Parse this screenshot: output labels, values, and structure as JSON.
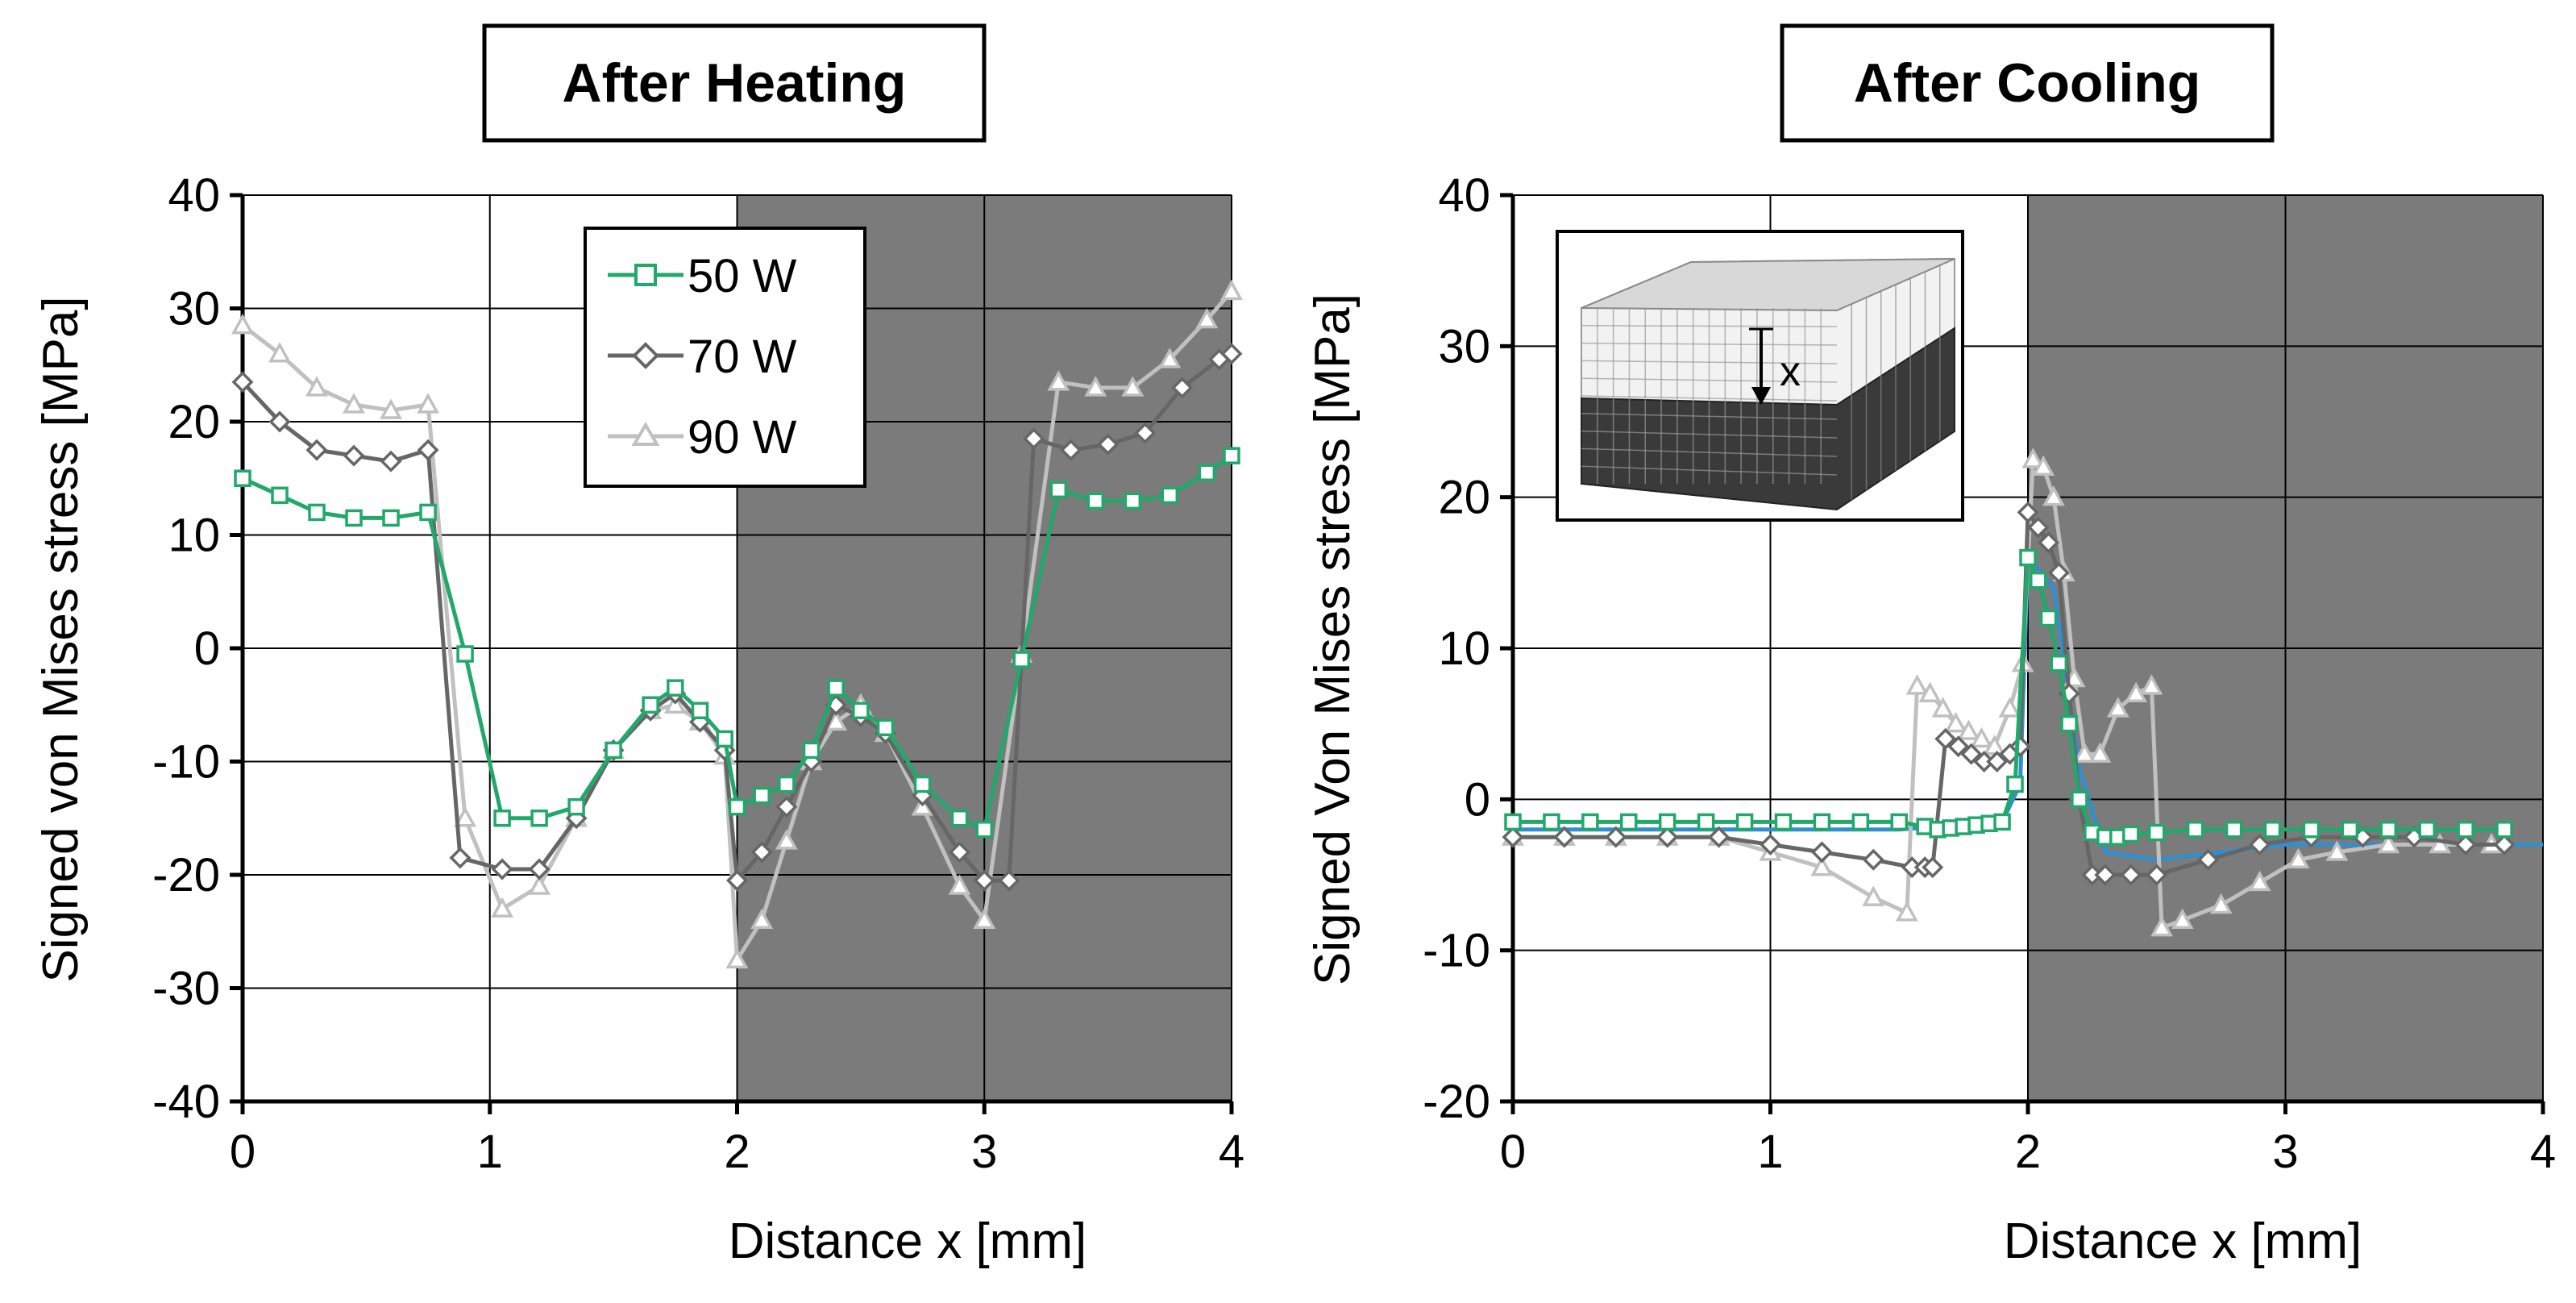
{
  "colors": {
    "50 W": "#22a86a",
    "70 W": "#666666",
    "90 W": "#c0c0c0",
    "cooling_extra": "#2f8fd0",
    "shade": "#7b7b7b"
  },
  "chart_data": [
    {
      "type": "line",
      "title": "After Heating",
      "xlabel": "Distance x   [mm]",
      "ylabel": "Signed von Mises stress   [MPa]",
      "xlim": [
        0,
        4
      ],
      "ylim": [
        -40,
        40
      ],
      "xticks": [
        0,
        1,
        2,
        3,
        4
      ],
      "yticks": [
        -40,
        -30,
        -20,
        -10,
        0,
        10,
        20,
        30,
        40
      ],
      "shaded_x_range": [
        2,
        4
      ],
      "grid": true,
      "legend": {
        "position": "top-center",
        "entries": [
          "50 W",
          "70 W",
          "90 W"
        ]
      },
      "series": [
        {
          "name": "50 W",
          "marker": "square",
          "x": [
            0,
            0.15,
            0.3,
            0.45,
            0.6,
            0.75,
            0.9,
            1.05,
            1.2,
            1.35,
            1.5,
            1.65,
            1.75,
            1.85,
            1.95,
            2.0,
            2.1,
            2.2,
            2.3,
            2.4,
            2.5,
            2.6,
            2.75,
            2.9,
            3.0,
            3.15,
            3.3,
            3.45,
            3.6,
            3.75,
            3.9,
            4.0
          ],
          "y": [
            15,
            13.5,
            12,
            11.5,
            11.5,
            12,
            -0.5,
            -15,
            -15,
            -14,
            -9,
            -5,
            -3.5,
            -5.5,
            -8,
            -14,
            -13,
            -12,
            -9,
            -3.5,
            -5.5,
            -7,
            -12,
            -15,
            -16,
            -1,
            14,
            13,
            13,
            13.5,
            15.5,
            17
          ]
        },
        {
          "name": "70 W",
          "marker": "diamond",
          "x": [
            0,
            0.15,
            0.3,
            0.45,
            0.6,
            0.75,
            0.88,
            1.05,
            1.2,
            1.35,
            1.5,
            1.65,
            1.75,
            1.85,
            1.95,
            2.0,
            2.1,
            2.2,
            2.3,
            2.4,
            2.5,
            2.6,
            2.75,
            2.9,
            3.0,
            3.1,
            3.2,
            3.35,
            3.5,
            3.65,
            3.8,
            3.95,
            4.0
          ],
          "y": [
            23.5,
            20,
            17.5,
            17,
            16.5,
            17.5,
            -18.5,
            -19.5,
            -19.5,
            -15,
            -9,
            -5.5,
            -4,
            -6.5,
            -9,
            -20.5,
            -18,
            -14,
            -10,
            -5,
            -6,
            -7.5,
            -13,
            -18,
            -20.5,
            -20.5,
            18.5,
            17.5,
            18,
            19,
            23,
            25.5,
            26
          ]
        },
        {
          "name": "90 W",
          "marker": "triangle",
          "x": [
            0,
            0.15,
            0.3,
            0.45,
            0.6,
            0.75,
            0.9,
            1.05,
            1.2,
            1.35,
            1.5,
            1.65,
            1.75,
            1.85,
            1.95,
            2.0,
            2.1,
            2.2,
            2.3,
            2.4,
            2.5,
            2.6,
            2.75,
            2.9,
            3.0,
            3.15,
            3.3,
            3.45,
            3.6,
            3.75,
            3.9,
            4.0
          ],
          "y": [
            28.5,
            26,
            23,
            21.5,
            21,
            21.5,
            -15,
            -23,
            -21,
            -15,
            -9,
            -5.5,
            -5,
            -6.5,
            -9.5,
            -27.5,
            -24,
            -17,
            -10,
            -6.5,
            -5,
            -7.5,
            -14,
            -21,
            -24,
            -0.5,
            23.5,
            23,
            23,
            25.5,
            29,
            31.5
          ]
        }
      ]
    },
    {
      "type": "line",
      "title": "After Cooling",
      "xlabel": "Distance x   [mm]",
      "ylabel": "Signed Von Mises stress   [MPa]",
      "xlim": [
        0,
        4
      ],
      "ylim": [
        -20,
        40
      ],
      "xticks": [
        0,
        1,
        2,
        3,
        4
      ],
      "yticks": [
        -20,
        -10,
        0,
        10,
        20,
        30,
        40
      ],
      "shaded_x_range": [
        2,
        4
      ],
      "grid": true,
      "inset": {
        "label": "x",
        "description": "mesh"
      },
      "series": [
        {
          "name": "50 W",
          "marker": "square",
          "x": [
            0,
            0.15,
            0.3,
            0.45,
            0.6,
            0.75,
            0.9,
            1.05,
            1.2,
            1.35,
            1.5,
            1.6,
            1.65,
            1.7,
            1.75,
            1.8,
            1.85,
            1.9,
            1.95,
            2.0,
            2.04,
            2.08,
            2.12,
            2.16,
            2.2,
            2.25,
            2.3,
            2.35,
            2.4,
            2.5,
            2.65,
            2.8,
            2.95,
            3.1,
            3.25,
            3.4,
            3.55,
            3.7,
            3.85
          ],
          "y": [
            -1.5,
            -1.5,
            -1.5,
            -1.5,
            -1.5,
            -1.5,
            -1.5,
            -1.5,
            -1.5,
            -1.5,
            -1.5,
            -1.8,
            -2.0,
            -1.9,
            -1.8,
            -1.7,
            -1.6,
            -1.5,
            1,
            16,
            14.5,
            12,
            9,
            5,
            0,
            -2.2,
            -2.5,
            -2.5,
            -2.3,
            -2.2,
            -2,
            -2,
            -2,
            -2,
            -2,
            -2,
            -2,
            -2,
            -2
          ]
        },
        {
          "name": "70 W",
          "marker": "diamond",
          "x": [
            0,
            0.2,
            0.4,
            0.6,
            0.8,
            1.0,
            1.2,
            1.4,
            1.55,
            1.6,
            1.63,
            1.68,
            1.73,
            1.78,
            1.83,
            1.88,
            1.93,
            1.97,
            2.0,
            2.04,
            2.08,
            2.12,
            2.16,
            2.2,
            2.25,
            2.3,
            2.4,
            2.5,
            2.7,
            2.9,
            3.1,
            3.3,
            3.5,
            3.7,
            3.85
          ],
          "y": [
            -2.5,
            -2.5,
            -2.5,
            -2.5,
            -2.5,
            -3,
            -3.5,
            -4,
            -4.5,
            -4.5,
            -4.5,
            4,
            3.5,
            3,
            2.5,
            2.5,
            3,
            3.5,
            19,
            18,
            17,
            15,
            7,
            0,
            -5,
            -5,
            -5,
            -5,
            -4,
            -3,
            -2.5,
            -2.5,
            -2.5,
            -3,
            -3
          ]
        },
        {
          "name": "90 W",
          "marker": "triangle",
          "x": [
            0,
            0.2,
            0.4,
            0.6,
            0.8,
            1.0,
            1.2,
            1.4,
            1.53,
            1.57,
            1.62,
            1.67,
            1.72,
            1.77,
            1.82,
            1.87,
            1.93,
            1.98,
            2.02,
            2.06,
            2.1,
            2.14,
            2.18,
            2.22,
            2.28,
            2.35,
            2.42,
            2.48,
            2.52,
            2.6,
            2.75,
            2.9,
            3.05,
            3.2,
            3.4,
            3.6,
            3.8
          ],
          "y": [
            -2.5,
            -2.5,
            -2.5,
            -2.5,
            -2.5,
            -3.5,
            -4.5,
            -6.5,
            -7.5,
            7.5,
            7,
            6,
            5,
            4.5,
            4,
            3.5,
            6,
            9,
            22.5,
            22,
            20,
            15,
            8,
            3,
            3,
            6,
            7,
            7.5,
            -8.5,
            -8,
            -7,
            -5.5,
            -4,
            -3.5,
            -3,
            -3,
            -3
          ]
        },
        {
          "name": "cooling_extra",
          "marker": "none",
          "x": [
            0,
            0.5,
            1.0,
            1.5,
            1.9,
            1.97,
            2.0,
            2.1,
            2.2,
            2.3,
            2.5,
            3.0,
            3.5,
            4.0
          ],
          "y": [
            -2,
            -2,
            -2,
            -2,
            -1.5,
            1,
            16,
            14,
            2,
            -3.5,
            -4,
            -3,
            -3,
            -3
          ]
        }
      ]
    }
  ]
}
